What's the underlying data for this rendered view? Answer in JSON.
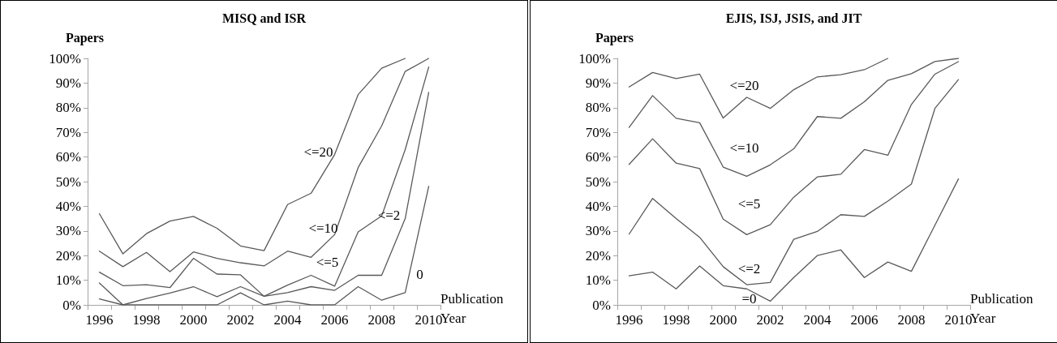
{
  "chart_data": [
    {
      "type": "line",
      "title": "MISQ and ISR",
      "ylabel": "Papers",
      "xlabel": "Publication Year",
      "categories": [
        "1996",
        null,
        "1998",
        null,
        "2000",
        null,
        "2002",
        null,
        "2004",
        null,
        "2006",
        null,
        "2008",
        null,
        "2010"
      ],
      "series": [
        {
          "name": "<=20",
          "color": "#595959",
          "values": [
            37.0,
            20.7,
            28.9,
            34.0,
            35.9,
            31.1,
            23.9,
            22.0,
            40.7,
            45.3,
            61.0,
            85.3,
            96.0,
            100,
            null
          ]
        },
        {
          "name": "<=10",
          "color": "#595959",
          "values": [
            21.8,
            15.5,
            21.3,
            13.5,
            21.5,
            18.9,
            17.1,
            15.8,
            21.8,
            19.3,
            28.5,
            55.7,
            72.6,
            94.7,
            100
          ]
        },
        {
          "name": "<=5",
          "color": "#595959",
          "values": [
            13.3,
            7.8,
            8.2,
            7.0,
            18.9,
            12.5,
            12.2,
            3.5,
            8.0,
            12.0,
            7.6,
            29.6,
            36.1,
            63.0,
            96.5
          ]
        },
        {
          "name": "<=2",
          "color": "#595959",
          "values": [
            8.9,
            0,
            2.6,
            4.8,
            7.4,
            3.3,
            7.4,
            3.5,
            5.0,
            7.4,
            5.9,
            12.0,
            12.0,
            35.0,
            86.2
          ]
        },
        {
          "name": "0",
          "color": "#595959",
          "values": [
            2.4,
            0,
            0,
            0,
            0,
            0,
            4.9,
            0,
            1.5,
            0,
            0,
            7.4,
            1.9,
            5.0,
            48.1
          ]
        }
      ],
      "ylim": [
        0,
        100
      ],
      "yticks": [
        {
          "value": 0,
          "label": "0%"
        },
        {
          "value": 10,
          "label": "10%"
        },
        {
          "value": 20,
          "label": "20%"
        },
        {
          "value": 30,
          "label": "30%"
        },
        {
          "value": 40,
          "label": "40%"
        },
        {
          "value": 50,
          "label": "50%"
        },
        {
          "value": 60,
          "label": "60%"
        },
        {
          "value": 70,
          "label": "70%"
        },
        {
          "value": 80,
          "label": "80%"
        },
        {
          "value": 90,
          "label": "90%"
        },
        {
          "value": 100,
          "label": "100%"
        }
      ],
      "grid": false,
      "marker": "none",
      "line_style": "solid"
    },
    {
      "type": "line",
      "title": "EJIS, ISJ, JSIS, and JIT",
      "ylabel": "Papers",
      "xlabel": "Publication Year",
      "categories": [
        "1996",
        null,
        "1998",
        null,
        "2000",
        null,
        "2002",
        null,
        "2004",
        null,
        "2006",
        null,
        "2008",
        null,
        "2010"
      ],
      "series": [
        {
          "name": "<=20",
          "color": "#595959",
          "values": [
            88.4,
            94.3,
            91.8,
            93.6,
            75.8,
            84.2,
            79.7,
            87.3,
            92.5,
            93.4,
            95.4,
            100,
            null,
            null,
            null
          ]
        },
        {
          "name": "<=10",
          "color": "#595959",
          "values": [
            72.0,
            84.9,
            75.7,
            73.9,
            55.9,
            52.2,
            56.8,
            63.3,
            76.4,
            75.7,
            82.4,
            91.1,
            93.8,
            98.7,
            100
          ]
        },
        {
          "name": "<=5",
          "color": "#595959",
          "values": [
            57.0,
            67.4,
            57.5,
            55.3,
            34.8,
            28.5,
            32.5,
            43.7,
            51.9,
            53.0,
            63.0,
            60.7,
            81.3,
            93.6,
            98.7
          ]
        },
        {
          "name": "<=2",
          "color": "#595959",
          "values": [
            28.7,
            43.2,
            35.0,
            27.4,
            15.5,
            8.2,
            9.1,
            26.6,
            29.8,
            36.6,
            35.9,
            42.1,
            49.0,
            79.7,
            91.4
          ]
        },
        {
          "name": "=0",
          "color": "#595959",
          "values": [
            11.8,
            13.3,
            6.5,
            15.8,
            7.8,
            6.5,
            1.5,
            11.1,
            20.0,
            22.3,
            11.1,
            17.4,
            13.6,
            32.3,
            51.1
          ]
        }
      ],
      "ylim": [
        0,
        100
      ],
      "yticks": [
        {
          "value": 0,
          "label": "0%"
        },
        {
          "value": 10,
          "label": "10%"
        },
        {
          "value": 20,
          "label": "20%"
        },
        {
          "value": 30,
          "label": "30%"
        },
        {
          "value": 40,
          "label": "40%"
        },
        {
          "value": 50,
          "label": "50%"
        },
        {
          "value": 60,
          "label": "60%"
        },
        {
          "value": 70,
          "label": "70%"
        },
        {
          "value": 80,
          "label": "80%"
        },
        {
          "value": 90,
          "label": "90%"
        },
        {
          "value": 100,
          "label": "100%"
        }
      ],
      "grid": false,
      "marker": "none",
      "line_style": "solid"
    }
  ]
}
